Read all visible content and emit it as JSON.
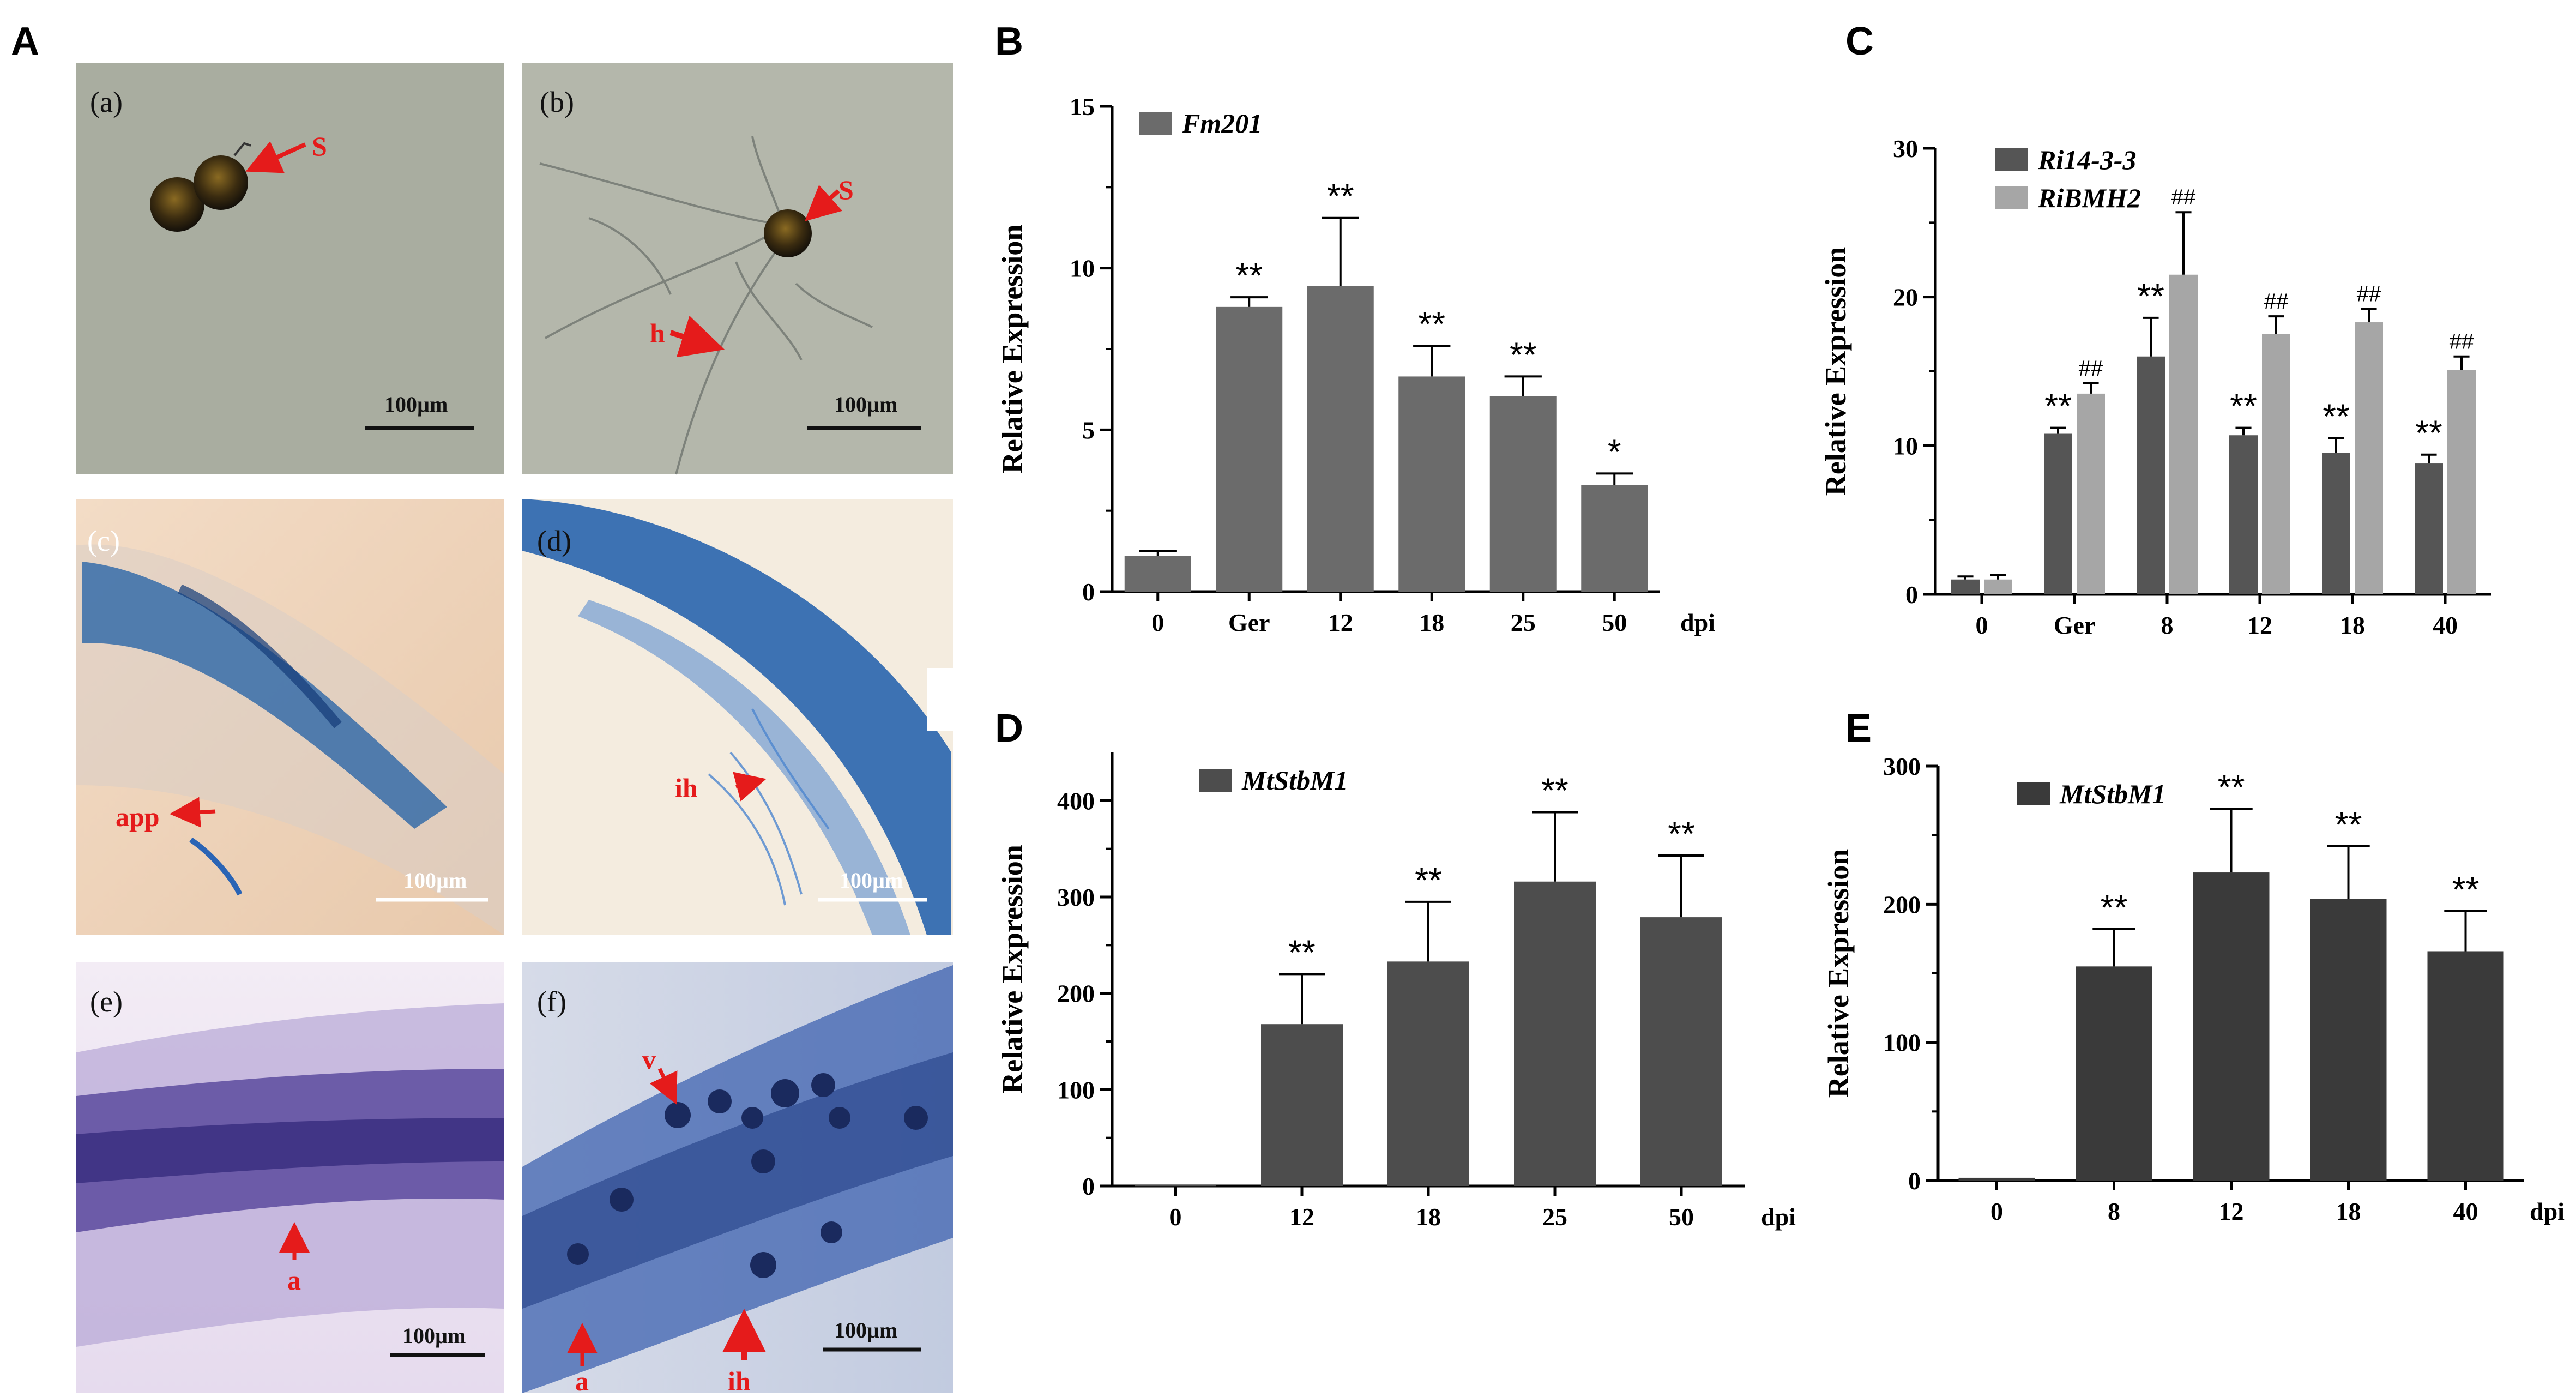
{
  "panel_letters": [
    "A",
    "B",
    "C",
    "D",
    "E"
  ],
  "micrographs": [
    {
      "sub_label": "(a)",
      "scale_bar": "100µm",
      "arrow_labels": [
        "S"
      ],
      "bg": "#a9ada0"
    },
    {
      "sub_label": "(b)",
      "scale_bar": "100µm",
      "arrow_labels": [
        "S",
        "h"
      ],
      "bg": "#b4b7ab"
    },
    {
      "sub_label": "(c)",
      "scale_bar": "100µm",
      "arrow_labels": [
        "app"
      ],
      "bg": "#eed6c0"
    },
    {
      "sub_label": "(d)",
      "scale_bar": "100µm",
      "arrow_labels": [
        "ih"
      ],
      "bg": "#f4ecdf"
    },
    {
      "sub_label": "(e)",
      "scale_bar": "100µm",
      "arrow_labels": [
        "a"
      ],
      "bg": "#ece3f0"
    },
    {
      "sub_label": "(f)",
      "scale_bar": "100µm",
      "arrow_labels": [
        "v",
        "a",
        "ih"
      ],
      "bg": "#cbd3e4"
    }
  ],
  "chart_data": [
    {
      "panel": "B",
      "type": "bar",
      "categories": [
        "0",
        "Ger",
        "12",
        "18",
        "25",
        "50"
      ],
      "x_unit": "dpi",
      "ylabel": "Relative Expression",
      "ylim": [
        0,
        15
      ],
      "yticks": [
        "0",
        "5",
        "10",
        "15"
      ],
      "series": [
        {
          "name": "Fm201",
          "color": "#6b6b6b",
          "values": [
            1.1,
            8.8,
            9.45,
            6.65,
            6.05,
            3.3
          ],
          "errors": [
            0.15,
            0.3,
            2.1,
            0.95,
            0.6,
            0.35
          ],
          "significance": [
            "",
            "**",
            "**",
            "**",
            "**",
            "*"
          ]
        }
      ],
      "legend_position": "top-left"
    },
    {
      "panel": "C",
      "type": "bar",
      "categories": [
        "0",
        "Ger",
        "8",
        "12",
        "18",
        "40"
      ],
      "x_unit": "",
      "ylabel": "Relative Expression",
      "ylim": [
        0,
        30
      ],
      "yticks": [
        "0",
        "10",
        "20",
        "30"
      ],
      "series": [
        {
          "name": "Ri14-3-3",
          "color": "#555555",
          "values": [
            1.0,
            10.8,
            16.0,
            10.7,
            9.5,
            8.8
          ],
          "errors": [
            0.2,
            0.4,
            2.6,
            0.5,
            1.0,
            0.6
          ],
          "significance": [
            "",
            "**",
            "**",
            "**",
            "**",
            "**"
          ]
        },
        {
          "name": "RiBMH2",
          "color": "#a6a6a6",
          "values": [
            1.0,
            13.5,
            21.5,
            17.5,
            18.3,
            15.1
          ],
          "errors": [
            0.3,
            0.7,
            4.2,
            1.2,
            0.9,
            0.9
          ],
          "significance": [
            "",
            "##",
            "##",
            "##",
            "##",
            "##"
          ]
        }
      ],
      "legend_position": "top-left"
    },
    {
      "panel": "D",
      "type": "bar",
      "categories": [
        "0",
        "12",
        "18",
        "25",
        "50"
      ],
      "x_unit": "dpi",
      "ylabel": "Relative Expression",
      "ylim": [
        0,
        450
      ],
      "yticks": [
        "0",
        "100",
        "200",
        "300",
        "400"
      ],
      "series": [
        {
          "name": "MtStbM1",
          "color": "#4d4d4d",
          "values": [
            1,
            168,
            233,
            316,
            279
          ],
          "errors": [
            0,
            52,
            62,
            72,
            64
          ],
          "significance": [
            "",
            "**",
            "**",
            "**",
            "**"
          ]
        }
      ],
      "legend_position": "top-left"
    },
    {
      "panel": "E",
      "type": "bar",
      "categories": [
        "0",
        "8",
        "12",
        "18",
        "40"
      ],
      "x_unit": "dpi",
      "ylabel": "Relative Expression",
      "ylim": [
        0,
        300
      ],
      "yticks": [
        "0",
        "100",
        "200",
        "300"
      ],
      "series": [
        {
          "name": "MtStbM1",
          "color": "#3a3a3a",
          "values": [
            2,
            155,
            223,
            204,
            166
          ],
          "errors": [
            0,
            27,
            46,
            38,
            29
          ],
          "significance": [
            "",
            "**",
            "**",
            "**",
            "**"
          ]
        }
      ],
      "legend_position": "top-left"
    }
  ]
}
